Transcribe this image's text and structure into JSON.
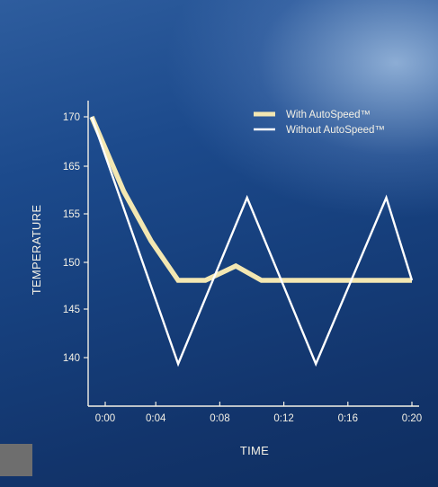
{
  "chart_data": {
    "type": "line",
    "title": "",
    "xlabel": "TIME",
    "ylabel": "TEMPERATURE",
    "x": [
      "0:00",
      "0:02",
      "0:04",
      "0:05",
      "0:07",
      "0:09",
      "0:11",
      "0:14",
      "0:16",
      "0:18",
      "0:20"
    ],
    "xticks": [
      "0:00",
      "0:04",
      "0:08",
      "0:12",
      "0:16",
      "0:20"
    ],
    "yticks": [
      170,
      165,
      155,
      150,
      145,
      140
    ],
    "xlim": [
      0,
      20
    ],
    "legend_position": "top-right",
    "grid": false,
    "series": [
      {
        "name": "With AutoSpeed™",
        "color": "#f3e7b2",
        "style": "thick",
        "points": [
          [
            0,
            170
          ],
          [
            2,
            161
          ],
          [
            3.7,
            152
          ],
          [
            5.4,
            146
          ],
          [
            7.1,
            146
          ],
          [
            9,
            148
          ],
          [
            10.6,
            146
          ],
          [
            14,
            146
          ],
          [
            16.2,
            146
          ],
          [
            18,
            146
          ],
          [
            20,
            146
          ]
        ]
      },
      {
        "name": "Without AutoSpeed™",
        "color": "#ffffff",
        "style": "thin",
        "points": [
          [
            0,
            170
          ],
          [
            5.4,
            135
          ],
          [
            9.7,
            160
          ],
          [
            14,
            135
          ],
          [
            18.4,
            160
          ],
          [
            20,
            146
          ]
        ]
      }
    ]
  }
}
